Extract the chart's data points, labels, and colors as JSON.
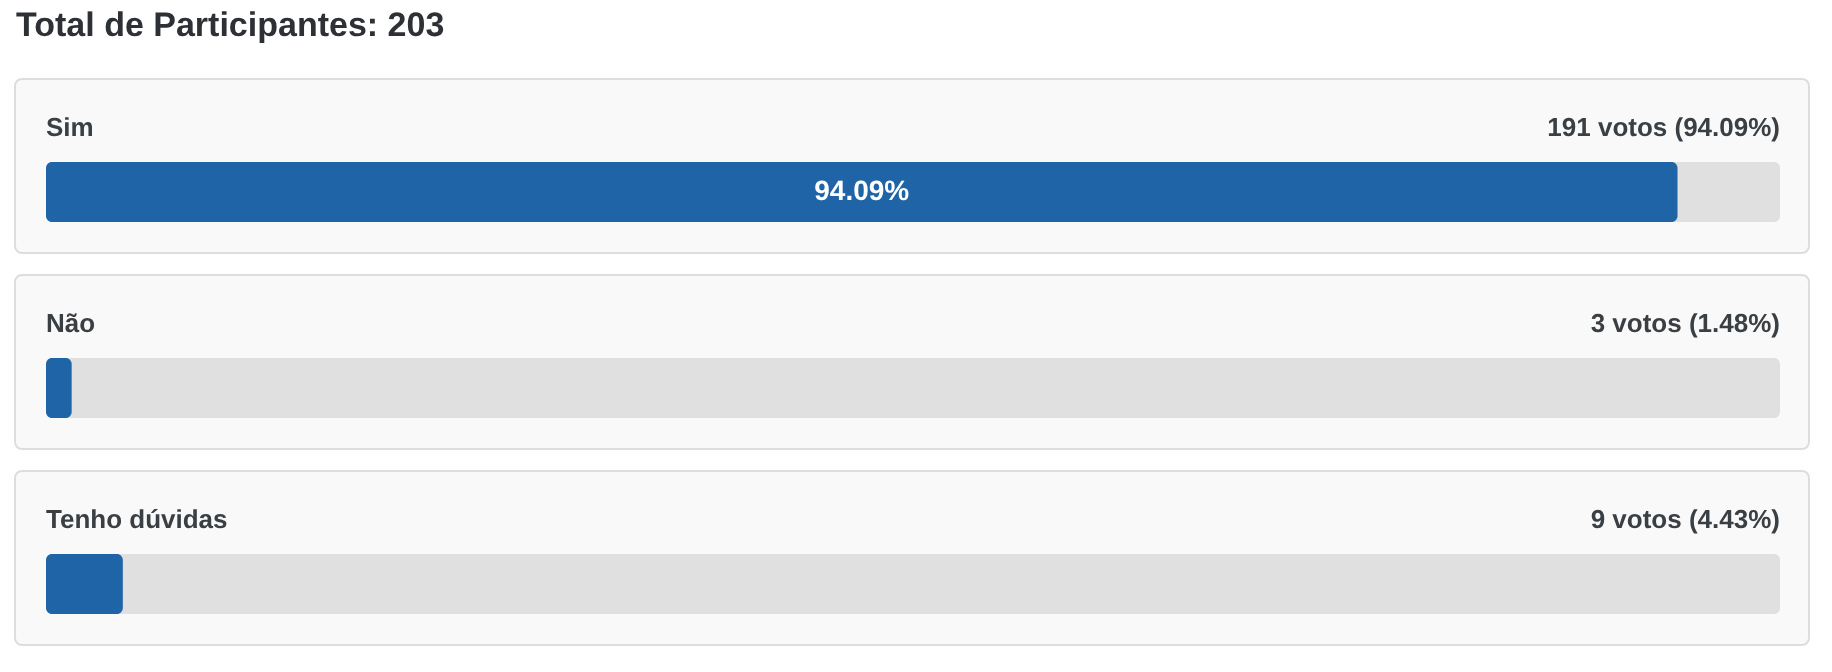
{
  "chart_data": {
    "type": "bar",
    "orientation": "horizontal",
    "title": "Total de Participantes: 203",
    "categories": [
      "Sim",
      "Não",
      "Tenho dúvidas"
    ],
    "values": [
      94.09,
      1.48,
      4.43
    ],
    "value_labels": [
      "191 votos (94.09%)",
      "3 votos (1.48%)",
      "9 votos (4.43%)"
    ],
    "color": "#1f64a6",
    "xlim": [
      0,
      100
    ],
    "annotations": [
      "94.09%"
    ]
  }
}
